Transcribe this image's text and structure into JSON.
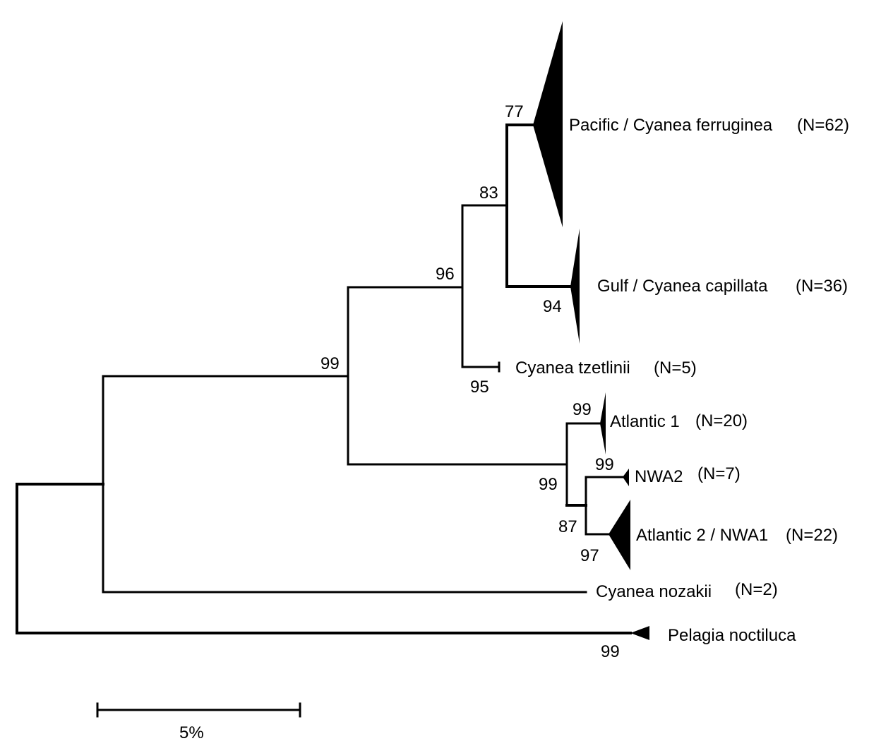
{
  "tree": {
    "clades": {
      "pacific": {
        "name": "Pacific / Cyanea ferruginea",
        "n": "(N=62)"
      },
      "gulf": {
        "name": "Gulf / Cyanea capillata",
        "n": "(N=36)"
      },
      "tzetlinii": {
        "name": "Cyanea tzetlinii",
        "n": "(N=5)"
      },
      "atlantic1": {
        "name": "Atlantic 1",
        "n": "(N=20)"
      },
      "nwa2": {
        "name": "NWA2",
        "n": "(N=7)"
      },
      "atlantic2": {
        "name": "Atlantic 2 / NWA1",
        "n": "(N=22)"
      },
      "nozakii": {
        "name": "Cyanea nozakii",
        "n": "(N=2)"
      },
      "pelagia": {
        "name": "Pelagia noctiluca"
      }
    },
    "support": {
      "pacific_node": "77",
      "pacific_gulf_node": "83",
      "cyanea_core_node": "96",
      "main_node": "99",
      "gulf_clade": "94",
      "tzetlinii_clade": "95",
      "atlantic1_node": "99",
      "atlantic1_clade": "99",
      "atlantic_node": "99",
      "nwa_node": "87",
      "atlantic2_clade": "97",
      "pelagia_clade": "99"
    }
  },
  "scale_bar": {
    "label": "5%"
  }
}
